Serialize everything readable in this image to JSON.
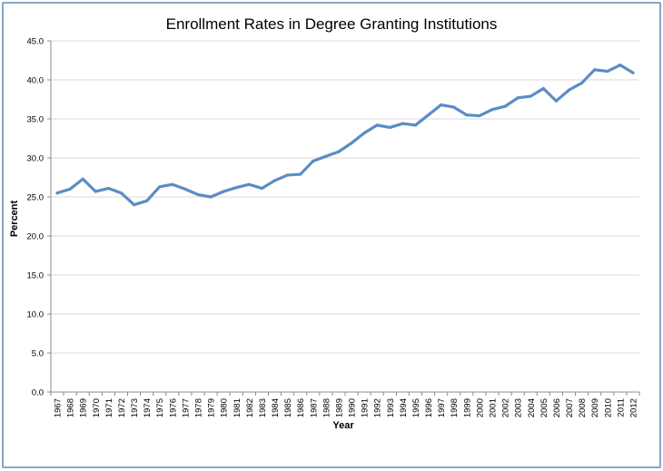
{
  "chart_data": {
    "type": "line",
    "title": "Enrollment Rates in Degree Granting Institutions",
    "xlabel": "Year",
    "ylabel": "Percent",
    "ylim": [
      0,
      45
    ],
    "yticks": [
      "0.0",
      "5.0",
      "10.0",
      "15.0",
      "20.0",
      "25.0",
      "30.0",
      "35.0",
      "40.0",
      "45.0"
    ],
    "grid": true,
    "legend": "none",
    "line_color": "#5b8cc4",
    "grid_color": "#d9d9d9",
    "categories": [
      "1967",
      "1968",
      "1969",
      "1970",
      "1971",
      "1972",
      "1973",
      "1974",
      "1975",
      "1976",
      "1977",
      "1978",
      "1979",
      "1980",
      "1981",
      "1982",
      "1983",
      "1984",
      "1985",
      "1986",
      "1987",
      "1988",
      "1989",
      "1990",
      "1991",
      "1992",
      "1993",
      "1994",
      "1995",
      "1996",
      "1997",
      "1998",
      "1999",
      "2000",
      "2001",
      "2002",
      "2003",
      "2004",
      "2005",
      "2006",
      "2007",
      "2008",
      "2009",
      "2010",
      "2011",
      "2012"
    ],
    "series": [
      {
        "name": "Enrollment Rate",
        "values": [
          25.5,
          26.0,
          27.3,
          25.7,
          26.1,
          25.5,
          24.0,
          24.5,
          26.3,
          26.6,
          26.0,
          25.3,
          25.0,
          25.7,
          26.2,
          26.6,
          26.1,
          27.1,
          27.8,
          27.9,
          29.6,
          30.2,
          30.8,
          31.9,
          33.2,
          34.2,
          33.9,
          34.4,
          34.2,
          35.5,
          36.8,
          36.5,
          35.5,
          35.4,
          36.2,
          36.6,
          37.7,
          37.9,
          38.9,
          37.3,
          38.7,
          39.6,
          41.3,
          41.1,
          41.9,
          40.9
        ]
      }
    ]
  }
}
